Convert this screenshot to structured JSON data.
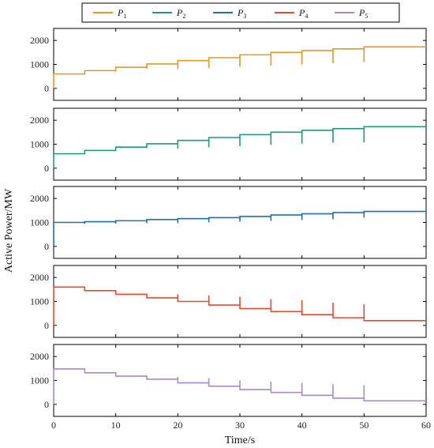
{
  "chart_data": {
    "type": "line",
    "ylabel": "Active Power/MW",
    "xlabel": "Time/s",
    "xlim": [
      0,
      60
    ],
    "ylim": [
      -500,
      2500
    ],
    "xticks": [
      0,
      10,
      20,
      30,
      40,
      50,
      60
    ],
    "yticks": [
      0,
      1000,
      2000
    ],
    "legend_position": "top",
    "series": [
      {
        "name": "P",
        "name_subscript": "1",
        "color": "#E09A1E",
        "x": [
          0,
          0,
          5,
          10,
          15,
          20,
          25,
          30,
          35,
          40,
          45,
          50,
          60
        ],
        "y": [
          0,
          600,
          740,
          880,
          1020,
          1160,
          1280,
          1400,
          1500,
          1580,
          1650,
          1730,
          1730
        ],
        "dips": [
          {
            "x": 5,
            "y": 580
          },
          {
            "x": 10,
            "y": 700
          },
          {
            "x": 15,
            "y": 820
          },
          {
            "x": 20,
            "y": 800
          },
          {
            "x": 25,
            "y": 850
          },
          {
            "x": 30,
            "y": 900
          },
          {
            "x": 35,
            "y": 950
          },
          {
            "x": 40,
            "y": 1000
          },
          {
            "x": 45,
            "y": 1050
          },
          {
            "x": 50,
            "y": 1100
          }
        ]
      },
      {
        "name": "P",
        "name_subscript": "2",
        "color": "#1E9C73",
        "x": [
          0,
          0,
          5,
          10,
          15,
          20,
          25,
          30,
          35,
          40,
          45,
          50,
          60
        ],
        "y": [
          0,
          600,
          740,
          880,
          1020,
          1160,
          1280,
          1400,
          1500,
          1580,
          1650,
          1730,
          1730
        ],
        "dips": [
          {
            "x": 5,
            "y": 600
          },
          {
            "x": 10,
            "y": 720
          },
          {
            "x": 15,
            "y": 840
          },
          {
            "x": 20,
            "y": 820
          },
          {
            "x": 25,
            "y": 870
          },
          {
            "x": 30,
            "y": 920
          },
          {
            "x": 35,
            "y": 970
          },
          {
            "x": 40,
            "y": 1020
          },
          {
            "x": 45,
            "y": 1060
          },
          {
            "x": 50,
            "y": 1080
          }
        ]
      },
      {
        "name": "P",
        "name_subscript": "3",
        "color": "#1F6FB2",
        "x": [
          0,
          0,
          5,
          10,
          15,
          20,
          25,
          30,
          35,
          40,
          45,
          50,
          60
        ],
        "y": [
          0,
          1000,
          1030,
          1070,
          1120,
          1160,
          1200,
          1250,
          1310,
          1360,
          1410,
          1460,
          1460
        ],
        "dips": [
          {
            "x": 5,
            "y": 950
          },
          {
            "x": 10,
            "y": 950
          },
          {
            "x": 15,
            "y": 970
          },
          {
            "x": 20,
            "y": 970
          },
          {
            "x": 25,
            "y": 1000
          },
          {
            "x": 30,
            "y": 1030
          },
          {
            "x": 35,
            "y": 1060
          },
          {
            "x": 40,
            "y": 1100
          },
          {
            "x": 45,
            "y": 1130
          },
          {
            "x": 50,
            "y": 1200
          }
        ]
      },
      {
        "name": "P",
        "name_subscript": "4",
        "color": "#E84A2E",
        "x": [
          0,
          0,
          5,
          10,
          15,
          20,
          25,
          30,
          35,
          40,
          45,
          50,
          60
        ],
        "y": [
          0,
          1600,
          1450,
          1300,
          1150,
          1000,
          850,
          700,
          580,
          450,
          320,
          200,
          200
        ],
        "dips": [
          {
            "x": 5,
            "y": 1550
          },
          {
            "x": 10,
            "y": 1450
          },
          {
            "x": 15,
            "y": 1300
          },
          {
            "x": 20,
            "y": 1300
          },
          {
            "x": 25,
            "y": 1250
          },
          {
            "x": 30,
            "y": 1200
          },
          {
            "x": 35,
            "y": 1100
          },
          {
            "x": 40,
            "y": 1050
          },
          {
            "x": 45,
            "y": 950
          },
          {
            "x": 50,
            "y": 880
          }
        ]
      },
      {
        "name": "P",
        "name_subscript": "5",
        "color": "#A78BC6",
        "x": [
          0,
          0,
          5,
          10,
          15,
          20,
          25,
          30,
          35,
          40,
          45,
          50,
          60
        ],
        "y": [
          0,
          1480,
          1320,
          1180,
          1050,
          900,
          760,
          620,
          500,
          380,
          260,
          150,
          150
        ],
        "dips": [
          {
            "x": 5,
            "y": 1450
          },
          {
            "x": 10,
            "y": 1350
          },
          {
            "x": 15,
            "y": 1200
          },
          {
            "x": 20,
            "y": 1150
          },
          {
            "x": 25,
            "y": 1100
          },
          {
            "x": 30,
            "y": 1000
          },
          {
            "x": 35,
            "y": 950
          },
          {
            "x": 40,
            "y": 900
          },
          {
            "x": 45,
            "y": 850
          },
          {
            "x": 50,
            "y": 800
          }
        ]
      }
    ]
  }
}
